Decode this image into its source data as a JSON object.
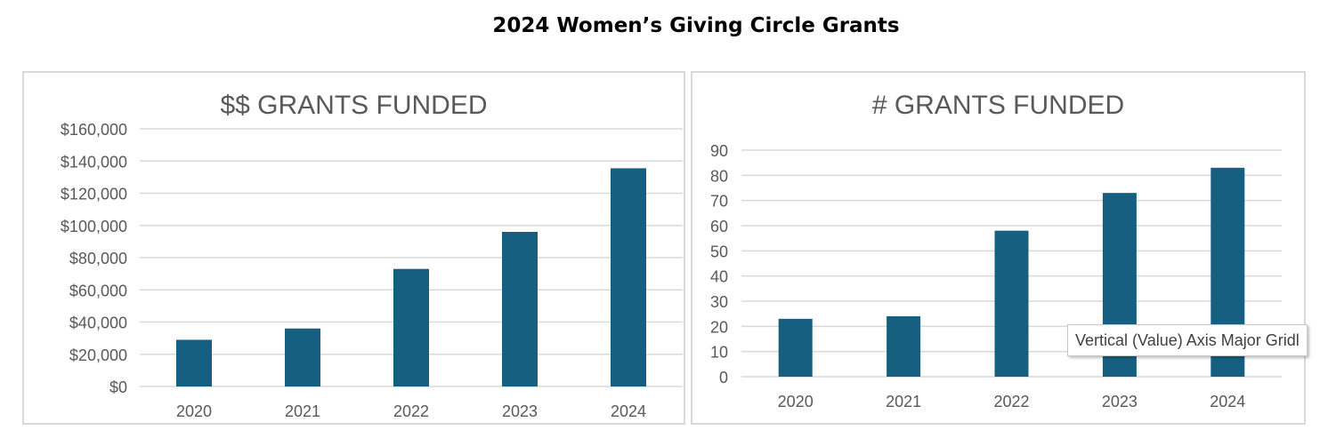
{
  "page_title": "2024 Women’s Giving Circle Grants",
  "tooltip": "Vertical (Value) Axis Major Gridl",
  "chart_data": [
    {
      "type": "bar",
      "title": "$$ GRANTS FUNDED",
      "categories": [
        "2020",
        "2021",
        "2022",
        "2023",
        "2024"
      ],
      "values": [
        29000,
        36000,
        73000,
        96000,
        135500
      ],
      "ylim": [
        0,
        160000
      ],
      "yticks": [
        "$0",
        "$20,000",
        "$40,000",
        "$60,000",
        "$80,000",
        "$100,000",
        "$120,000",
        "$140,000",
        "$160,000"
      ],
      "grid": true,
      "bar_color": "#175f81"
    },
    {
      "type": "bar",
      "title": "# GRANTS FUNDED",
      "categories": [
        "2020",
        "2021",
        "2022",
        "2023",
        "2024"
      ],
      "values": [
        23,
        24,
        58,
        73,
        83
      ],
      "ylim": [
        0,
        90
      ],
      "yticks": [
        "0",
        "10",
        "20",
        "30",
        "40",
        "50",
        "60",
        "70",
        "80",
        "90"
      ],
      "grid": true,
      "bar_color": "#175f81"
    }
  ]
}
